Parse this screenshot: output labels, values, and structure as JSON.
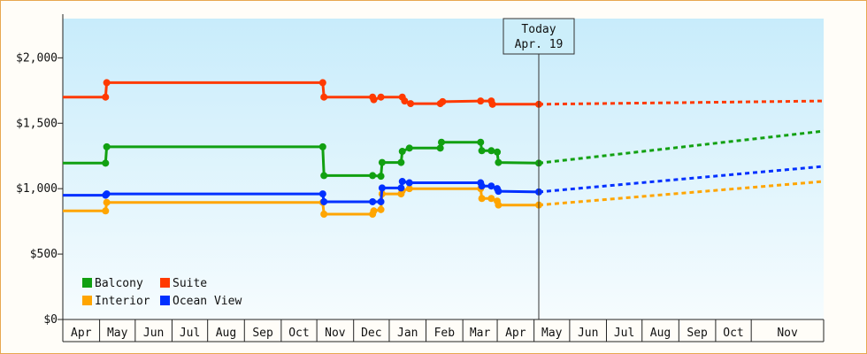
{
  "chart_data": {
    "type": "line",
    "title": "",
    "xlabel": "",
    "ylabel": "",
    "ylim": [
      0,
      2300
    ],
    "y_ticks": [
      {
        "value": 0,
        "label": "$0"
      },
      {
        "value": 500,
        "label": "$500"
      },
      {
        "value": 1000,
        "label": "$1,000"
      },
      {
        "value": 1500,
        "label": "$1,500"
      },
      {
        "value": 2000,
        "label": "$2,000"
      }
    ],
    "x_range": [
      "2023-03-15",
      "2024-12-15"
    ],
    "month_bins": [
      {
        "label": "Apr",
        "start": "2023-03-15"
      },
      {
        "label": "May",
        "start": "2023-04-15"
      },
      {
        "label": "Jun",
        "start": "2023-05-15"
      },
      {
        "label": "Jul",
        "start": "2023-06-15"
      },
      {
        "label": "Aug",
        "start": "2023-07-15"
      },
      {
        "label": "Sep",
        "start": "2023-08-15"
      },
      {
        "label": "Oct",
        "start": "2023-09-15"
      },
      {
        "label": "Nov",
        "start": "2023-10-15"
      },
      {
        "label": "Dec",
        "start": "2023-11-15"
      },
      {
        "label": "Jan",
        "start": "2023-12-15"
      },
      {
        "label": "Feb",
        "start": "2024-01-15"
      },
      {
        "label": "Mar",
        "start": "2024-02-15"
      },
      {
        "label": "Apr",
        "start": "2024-03-15"
      },
      {
        "label": "May",
        "start": "2024-04-15"
      },
      {
        "label": "Jun",
        "start": "2024-05-15"
      },
      {
        "label": "Jul",
        "start": "2024-06-15"
      },
      {
        "label": "Aug",
        "start": "2024-07-15"
      },
      {
        "label": "Sep",
        "start": "2024-08-15"
      },
      {
        "label": "Oct",
        "start": "2024-09-15"
      },
      {
        "label": "Nov",
        "start": "2024-10-15"
      }
    ],
    "today": {
      "line1": "Today",
      "line2": "Apr. 19",
      "date": "2024-04-19"
    },
    "legend_position": "bottom-left",
    "grid": false,
    "series": [
      {
        "name": "Balcony",
        "color": "#11a011",
        "points": [
          [
            "2023-03-15",
            1195
          ],
          [
            "2023-04-20",
            1195
          ],
          [
            "2023-04-21",
            1320
          ],
          [
            "2023-10-20",
            1320
          ],
          [
            "2023-10-21",
            1100
          ],
          [
            "2023-12-01",
            1100
          ],
          [
            "2023-12-08",
            1095
          ],
          [
            "2023-12-09",
            1200
          ],
          [
            "2023-12-25",
            1200
          ],
          [
            "2023-12-26",
            1285
          ],
          [
            "2024-01-01",
            1310
          ],
          [
            "2024-01-27",
            1310
          ],
          [
            "2024-01-28",
            1355
          ],
          [
            "2024-03-01",
            1355
          ],
          [
            "2024-03-02",
            1290
          ],
          [
            "2024-03-10",
            1290
          ],
          [
            "2024-03-15",
            1280
          ],
          [
            "2024-03-16",
            1200
          ],
          [
            "2024-04-19",
            1195
          ]
        ],
        "projection": [
          [
            "2024-04-19",
            1195
          ],
          [
            "2024-12-15",
            1440
          ]
        ]
      },
      {
        "name": "Suite",
        "color": "#ff3a00",
        "points": [
          [
            "2023-03-15",
            1700
          ],
          [
            "2023-04-20",
            1700
          ],
          [
            "2023-04-21",
            1810
          ],
          [
            "2023-10-20",
            1810
          ],
          [
            "2023-10-21",
            1700
          ],
          [
            "2023-12-01",
            1700
          ],
          [
            "2023-12-02",
            1680
          ],
          [
            "2023-12-08",
            1700
          ],
          [
            "2023-12-26",
            1700
          ],
          [
            "2023-12-28",
            1670
          ],
          [
            "2024-01-02",
            1650
          ],
          [
            "2024-01-27",
            1650
          ],
          [
            "2024-01-29",
            1665
          ],
          [
            "2024-03-01",
            1670
          ],
          [
            "2024-03-10",
            1670
          ],
          [
            "2024-03-11",
            1645
          ],
          [
            "2024-04-19",
            1645
          ]
        ],
        "projection": [
          [
            "2024-04-19",
            1645
          ],
          [
            "2024-12-15",
            1670
          ]
        ]
      },
      {
        "name": "Interior",
        "color": "#ffa500",
        "points": [
          [
            "2023-03-15",
            830
          ],
          [
            "2023-04-20",
            830
          ],
          [
            "2023-04-21",
            895
          ],
          [
            "2023-10-20",
            895
          ],
          [
            "2023-10-21",
            805
          ],
          [
            "2023-12-01",
            805
          ],
          [
            "2023-12-02",
            830
          ],
          [
            "2023-12-08",
            840
          ],
          [
            "2023-12-09",
            960
          ],
          [
            "2023-12-25",
            960
          ],
          [
            "2023-12-26",
            985
          ],
          [
            "2024-01-01",
            1000
          ],
          [
            "2024-03-01",
            1000
          ],
          [
            "2024-03-02",
            925
          ],
          [
            "2024-03-10",
            925
          ],
          [
            "2024-03-15",
            905
          ],
          [
            "2024-03-16",
            875
          ],
          [
            "2024-04-19",
            875
          ]
        ],
        "projection": [
          [
            "2024-04-19",
            875
          ],
          [
            "2024-12-15",
            1055
          ]
        ]
      },
      {
        "name": "Ocean View",
        "color": "#0030ff",
        "points": [
          [
            "2023-03-15",
            950
          ],
          [
            "2023-04-20",
            950
          ],
          [
            "2023-04-21",
            960
          ],
          [
            "2023-10-20",
            960
          ],
          [
            "2023-10-21",
            900
          ],
          [
            "2023-12-01",
            900
          ],
          [
            "2023-12-08",
            900
          ],
          [
            "2023-12-09",
            1005
          ],
          [
            "2023-12-25",
            1005
          ],
          [
            "2023-12-26",
            1055
          ],
          [
            "2024-01-01",
            1045
          ],
          [
            "2024-03-01",
            1045
          ],
          [
            "2024-03-02",
            1020
          ],
          [
            "2024-03-10",
            1020
          ],
          [
            "2024-03-15",
            1000
          ],
          [
            "2024-03-16",
            980
          ],
          [
            "2024-04-19",
            975
          ]
        ],
        "projection": [
          [
            "2024-04-19",
            975
          ],
          [
            "2024-12-15",
            1170
          ]
        ]
      }
    ]
  }
}
